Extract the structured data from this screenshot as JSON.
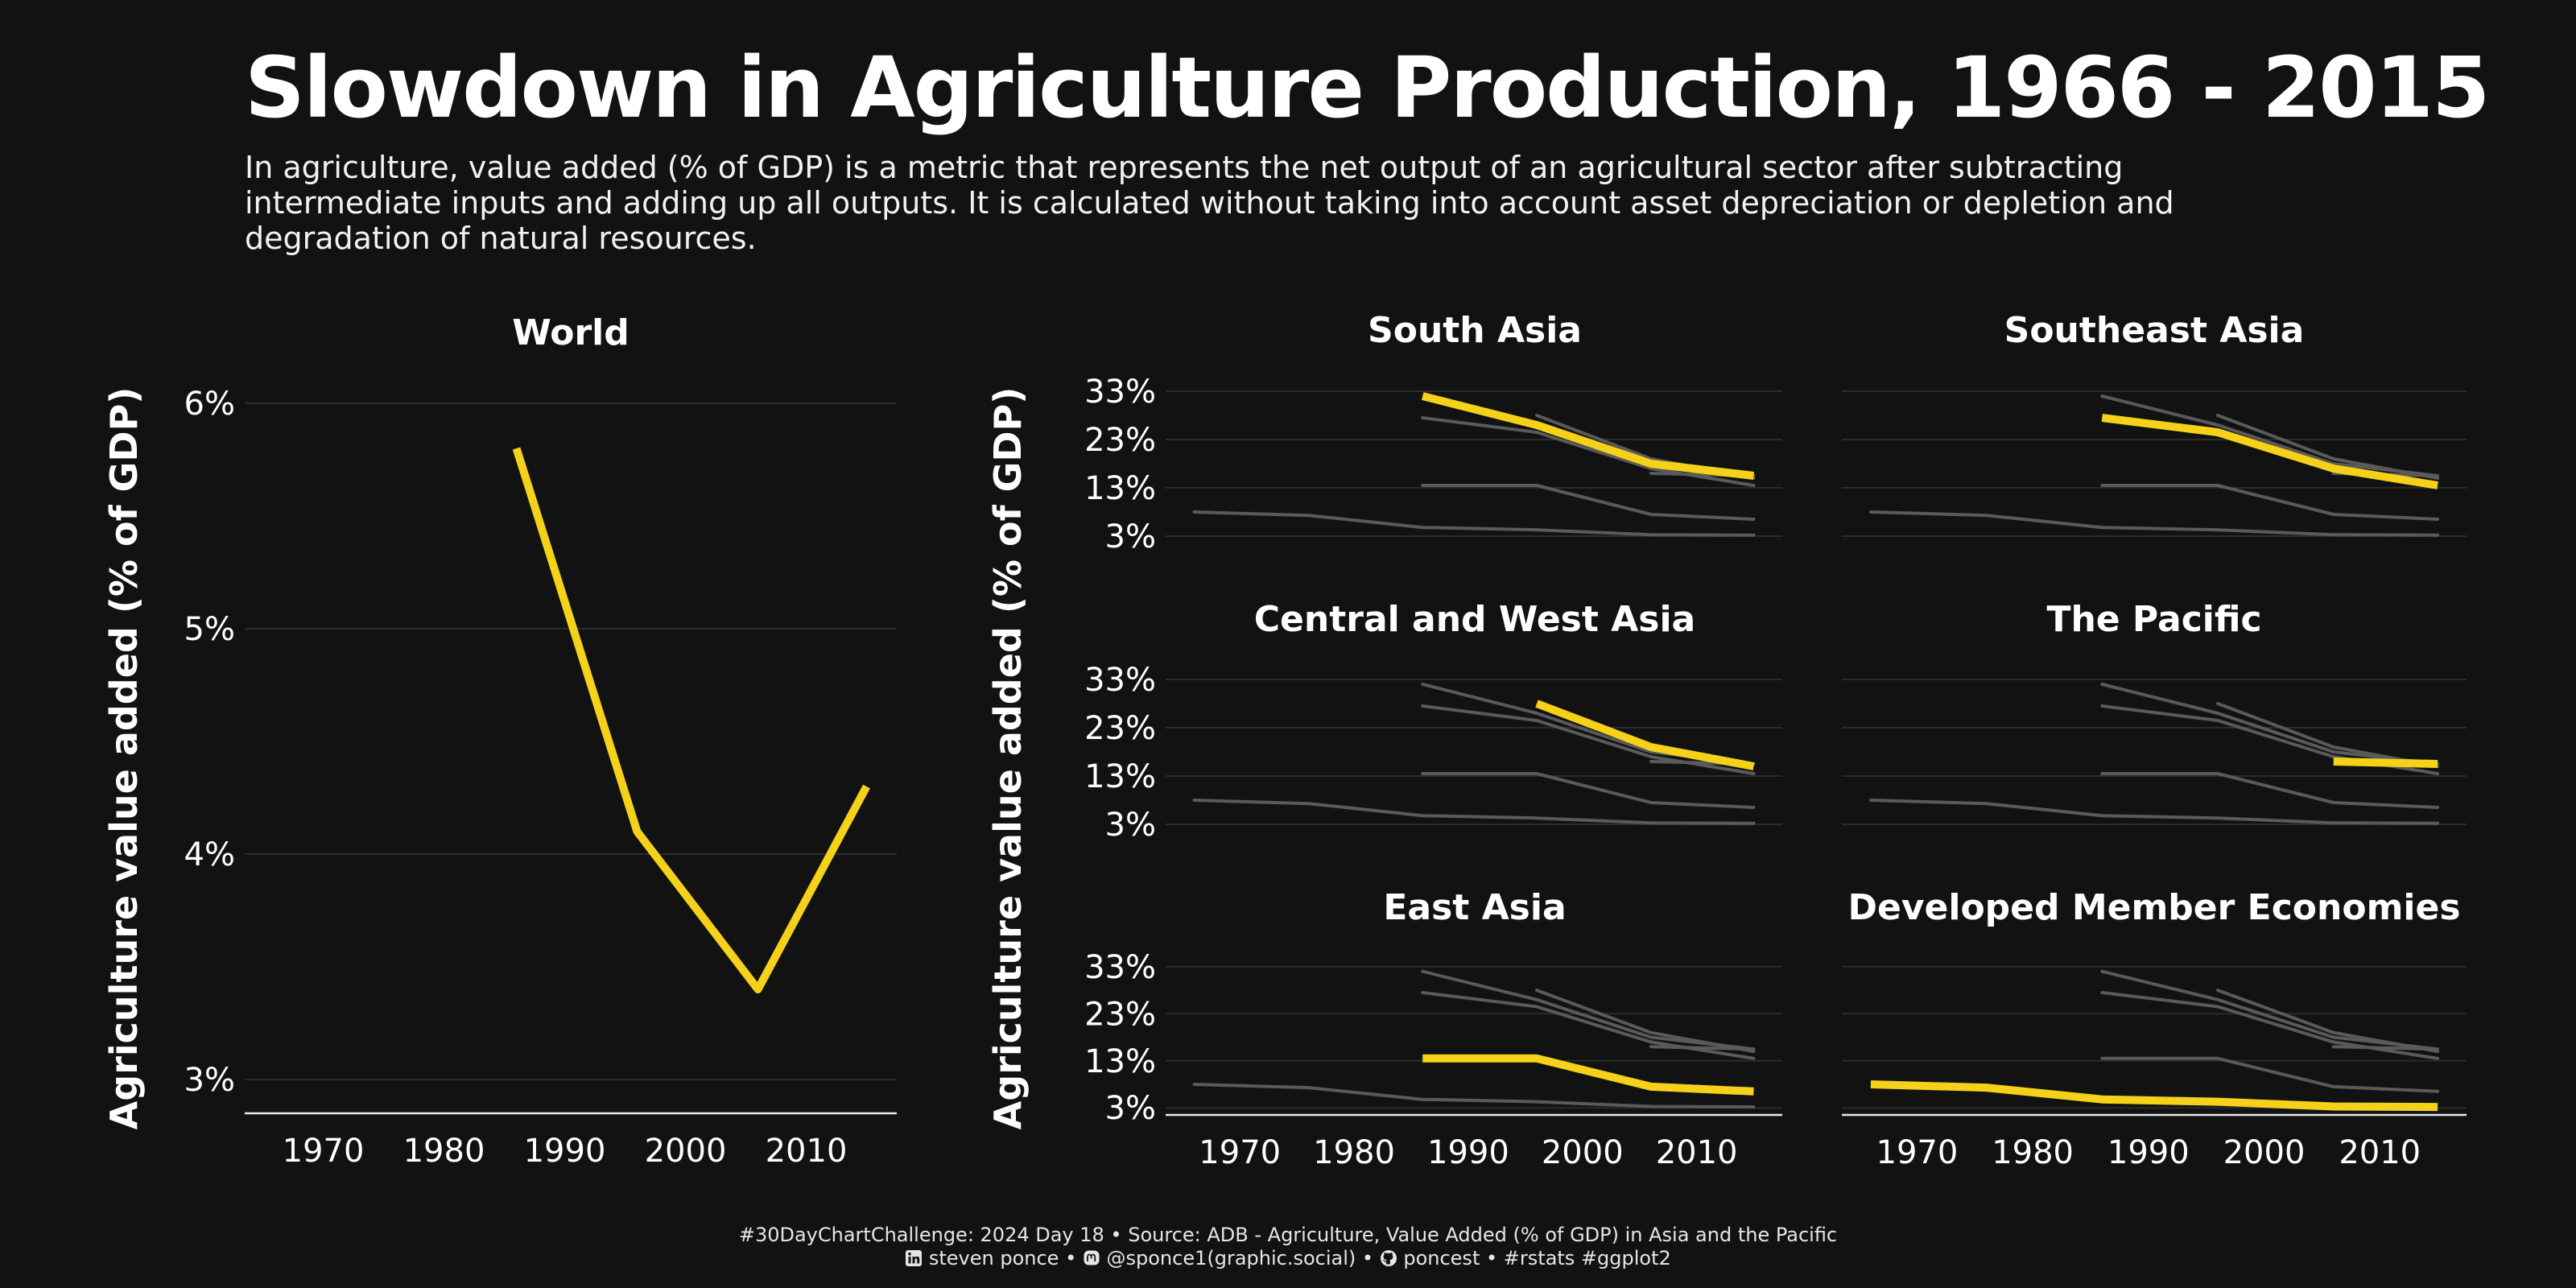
{
  "title": "Slowdown in Agriculture Production, 1966 - 2015",
  "subtitle": "In agriculture, value added (% of GDP) is a metric that represents the net output of an agricultural sector after subtracting intermediate inputs and adding up all outputs. It is calculated without taking into account asset depreciation or depletion and degradation of natural resources.",
  "caption": {
    "line1": "#30DayChartChallenge: 2024 Day 18 • Source: ADB - Agriculture, Value Added (% of GDP) in Asia and the Pacific",
    "line2_linkedin": "steven ponce",
    "line2_mastodon": "@sponce1(graphic.social)",
    "line2_github": "poncest",
    "line2_tags": "#rstats #ggplot2",
    "separator": "•"
  },
  "colors": {
    "background": "#121212",
    "highlight": "#f5d11a",
    "context": "#5a5a5a",
    "grid": "#2b2b2b",
    "text": "#ffffff"
  },
  "chart_data": [
    {
      "type": "line",
      "title": "World",
      "ylabel": "Agriculture value added (% of GDP)",
      "x_ticks": [
        1970,
        1980,
        1990,
        2000,
        2010
      ],
      "y_ticks": [
        3,
        4,
        5,
        6
      ],
      "y_tick_labels": [
        "3%",
        "4%",
        "5%",
        "6%"
      ],
      "xlim": [
        1963.5,
        2017.5
      ],
      "ylim": [
        2.85,
        6.0
      ],
      "series": [
        {
          "x": [
            1986,
            1996,
            2006,
            2015
          ],
          "values": [
            5.8,
            4.1,
            3.4,
            4.3
          ]
        }
      ]
    },
    {
      "type": "line",
      "facets_shared_axes": true,
      "ylabel": "Agriculture value added (% of GDP)",
      "x_ticks": [
        1970,
        1980,
        1990,
        2000,
        2010
      ],
      "y_ticks": [
        3,
        13,
        23,
        33
      ],
      "y_tick_labels": [
        "3%",
        "13%",
        "23%",
        "33%"
      ],
      "xlim": [
        1963.5,
        2017.5
      ],
      "ylim": [
        1.5,
        34
      ],
      "facets": [
        {
          "title": "South Asia",
          "x": [
            1986,
            1996,
            2006,
            2015
          ],
          "values": [
            32,
            26,
            18,
            15.5
          ]
        },
        {
          "title": "Southeast Asia",
          "x": [
            1986,
            1996,
            2006,
            2015
          ],
          "values": [
            27.5,
            24.5,
            17,
            13.5
          ]
        },
        {
          "title": "Central and West Asia",
          "x": [
            1996,
            2006,
            2015
          ],
          "values": [
            28,
            19,
            15
          ]
        },
        {
          "title": "The Pacific",
          "x": [
            2006,
            2015
          ],
          "values": [
            16,
            15.5
          ]
        },
        {
          "title": "East Asia",
          "x": [
            1986,
            1996,
            2006,
            2015
          ],
          "values": [
            13.5,
            13.5,
            7.5,
            6.5
          ]
        },
        {
          "title": "Developed Member Economies",
          "x": [
            1966,
            1976,
            1986,
            1996,
            2006,
            2015
          ],
          "values": [
            8,
            7.3,
            4.8,
            4.3,
            3.3,
            3.2
          ]
        }
      ]
    }
  ]
}
